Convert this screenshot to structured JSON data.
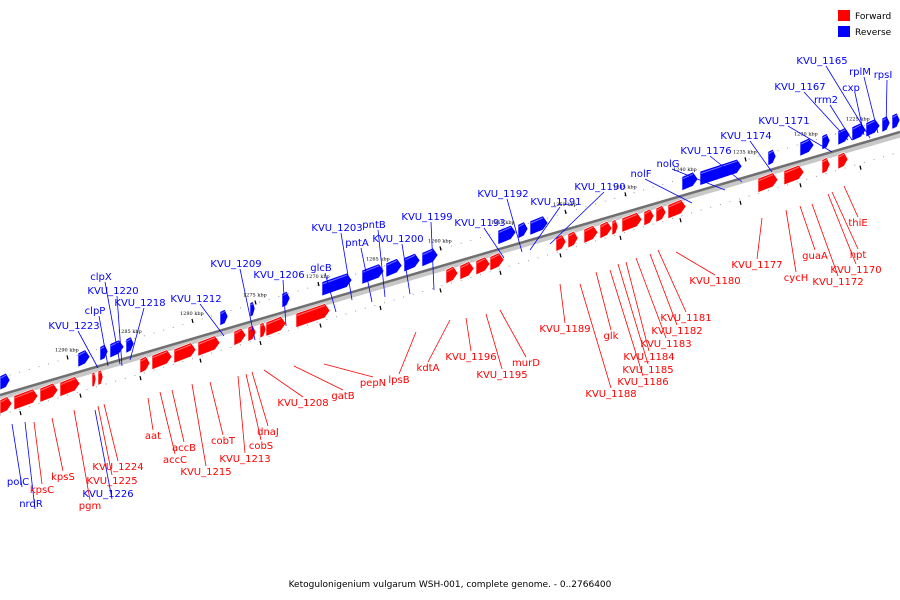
{
  "legend": [
    {
      "label": "Forward",
      "color": "#ff0000"
    },
    {
      "label": "Reverse",
      "color": "#0000ff"
    }
  ],
  "caption": "Ketogulonigenium vulgarum WSH-001, complete genome. - 0..2766400",
  "colors": {
    "forward": "#ff0000",
    "reverse": "#0000ff",
    "backbone": "#808080"
  },
  "ticks": [
    "1225 kbp",
    "1230 kbp",
    "1235 kbp",
    "1240 kbp",
    "1245 kbp",
    "1250 kbp",
    "1255 kbp",
    "1260 kbp",
    "1265 kbp",
    "1270 kbp",
    "1275 kbp",
    "1280 kbp",
    "1285 kbp",
    "1290 kbp"
  ],
  "reverse_labels": [
    "KVU_1165",
    "rplM",
    "rpsI",
    "KVU_1167",
    "rrm2",
    "cxp",
    "KVU_1171",
    "KVU_1174",
    "KVU_1176",
    "nolG",
    "nolF",
    "KVU_1190",
    "KVU_1191",
    "KVU_1192",
    "KVU_1193",
    "KVU_1199",
    "KVU_1200",
    "KVU_1203",
    "pntB",
    "pntA",
    "glcB",
    "KVU_1206",
    "KVU_1209",
    "KVU_1212",
    "KVU_1218",
    "clpX",
    "KVU_1220",
    "clpP",
    "KVU_1223",
    "polC",
    "nrdR",
    "KVU_1226"
  ],
  "forward_labels": [
    "thiE",
    "hpt",
    "KVU_1170",
    "KVU_1172",
    "guaA",
    "cycH",
    "KVU_1177",
    "KVU_1180",
    "KVU_1181",
    "KVU_1182",
    "KVU_1183",
    "KVU_1184",
    "KVU_1185",
    "KVU_1186",
    "glk",
    "KVU_1188",
    "KVU_1189",
    "murD",
    "KVU_1195",
    "KVU_1196",
    "kdtA",
    "lpsB",
    "pepN",
    "gatB",
    "KVU_1208",
    "dnaJ",
    "cobS",
    "KVU_1213",
    "cobT",
    "KVU_1215",
    "accB",
    "accC",
    "aat",
    "KVU_1224",
    "KVU_1225",
    "pgm",
    "kpsS",
    "kpsC"
  ]
}
